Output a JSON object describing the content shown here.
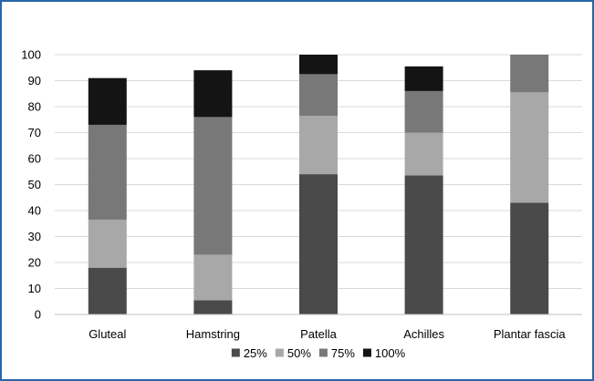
{
  "chart_data": {
    "type": "bar",
    "stacked": true,
    "categories": [
      "Gluteal",
      "Hamstring",
      "Patella",
      "Achilles",
      "Plantar fascia"
    ],
    "series": [
      {
        "name": "25%",
        "color": "#4a4a4a",
        "values": [
          18,
          5.5,
          54,
          53.5,
          43
        ]
      },
      {
        "name": "50%",
        "color": "#a8a8a8",
        "values": [
          18.5,
          17.5,
          22.5,
          16.5,
          42.5
        ]
      },
      {
        "name": "75%",
        "color": "#787878",
        "values": [
          36.5,
          53,
          16,
          16,
          14.5
        ]
      },
      {
        "name": "100%",
        "color": "#141414",
        "values": [
          18,
          18,
          7.5,
          9.5,
          0
        ]
      }
    ],
    "ylim": [
      0,
      100
    ],
    "yticks": [
      0,
      10,
      20,
      30,
      40,
      50,
      60,
      70,
      80,
      90,
      100
    ],
    "grid": true,
    "legend_position": "bottom",
    "title": "",
    "xlabel": "",
    "ylabel": ""
  },
  "colors": {
    "frame_border": "#2a66a8",
    "gridline": "#d9d9d9",
    "axis_line": "#bfbfbf"
  }
}
